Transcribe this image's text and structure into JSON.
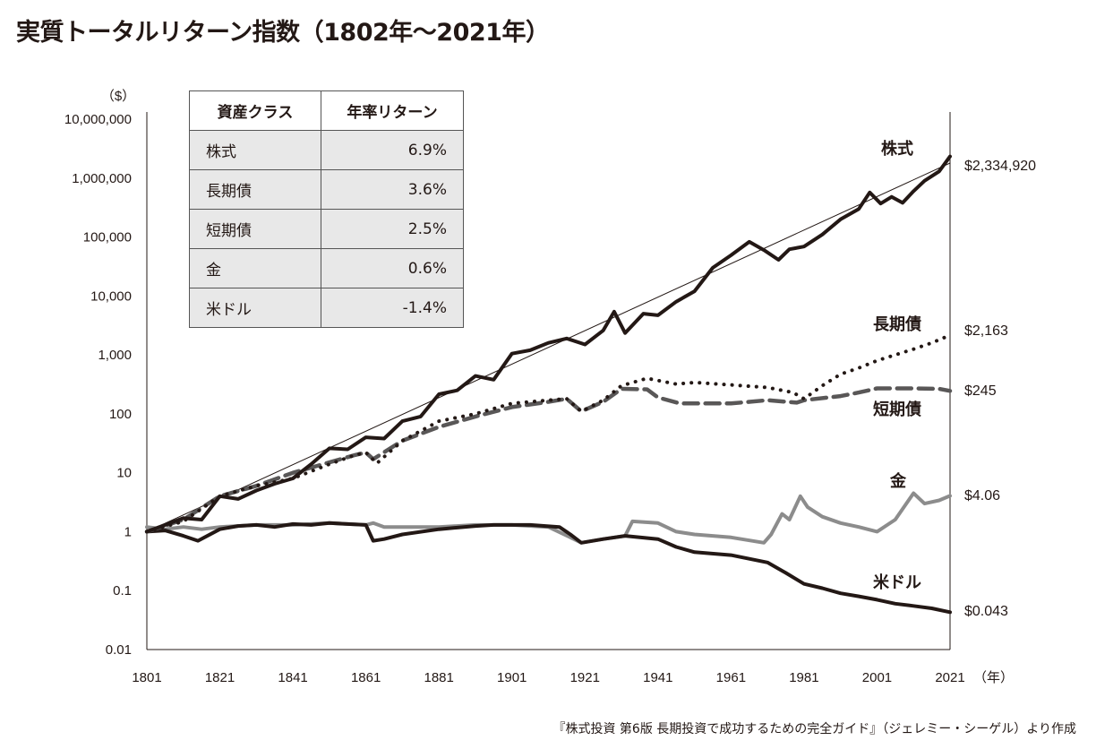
{
  "title": "実質トータルリターン指数（1802年〜2021年）",
  "source": "『株式投資 第6版 長期投資で成功するための完全ガイド』（ジェレミー・シーゲル）より作成",
  "table": {
    "headers": [
      "資産クラス",
      "年率リターン"
    ],
    "rows": [
      {
        "asset": "株式",
        "return": "6.9%"
      },
      {
        "asset": "長期債",
        "return": "3.6%"
      },
      {
        "asset": "短期債",
        "return": "2.5%"
      },
      {
        "asset": "金",
        "return": "0.6%"
      },
      {
        "asset": "米ドル",
        "return": "-1.4%"
      }
    ]
  },
  "chart_data": {
    "type": "line",
    "title": "実質トータルリターン指数（1802年〜2021年）",
    "ylabel": "（$）",
    "xlabel": "（年）",
    "yscale": "log",
    "ylim": [
      0.01,
      10000000
    ],
    "xlim": [
      1801,
      2021
    ],
    "yticks": [
      "0.01",
      "0.1",
      "1",
      "10",
      "100",
      "1,000",
      "10,000",
      "100,000",
      "1,000,000",
      "10,000,000"
    ],
    "xticks": [
      "1801",
      "1821",
      "1841",
      "1861",
      "1881",
      "1901",
      "1921",
      "1941",
      "1961",
      "1981",
      "2001",
      "2021"
    ],
    "grid": false,
    "series": [
      {
        "name": "株式",
        "end_label": "$2,334,920",
        "color": "#231815",
        "style": "solid",
        "x": [
          1801,
          1806,
          1811,
          1816,
          1821,
          1826,
          1831,
          1836,
          1841,
          1846,
          1851,
          1856,
          1861,
          1866,
          1871,
          1876,
          1881,
          1886,
          1891,
          1896,
          1901,
          1906,
          1911,
          1916,
          1921,
          1926,
          1929,
          1932,
          1937,
          1941,
          1946,
          1951,
          1956,
          1961,
          1966,
          1970,
          1974,
          1977,
          1981,
          1986,
          1991,
          1996,
          1999,
          2002,
          2005,
          2008,
          2011,
          2014,
          2018,
          2021
        ],
        "y": [
          1,
          1.3,
          1.7,
          1.6,
          4,
          3.6,
          5,
          6.5,
          8,
          14,
          26,
          25,
          40,
          38,
          75,
          90,
          215,
          250,
          440,
          380,
          1050,
          1200,
          1600,
          1900,
          1500,
          2600,
          5400,
          2350,
          5000,
          4700,
          8000,
          12000,
          30000,
          49000,
          83000,
          60000,
          41000,
          62000,
          69000,
          110000,
          200000,
          300000,
          570000,
          370000,
          480000,
          380000,
          600000,
          900000,
          1300000,
          2334920
        ]
      },
      {
        "name": "長期債",
        "end_label": "$2,163",
        "color": "#231815",
        "style": "dotted",
        "x": [
          1801,
          1811,
          1821,
          1831,
          1841,
          1851,
          1858,
          1861,
          1864,
          1871,
          1881,
          1891,
          1901,
          1911,
          1916,
          1920,
          1926,
          1931,
          1938,
          1946,
          1951,
          1961,
          1971,
          1978,
          1981,
          1986,
          1991,
          1996,
          2001,
          2006,
          2011,
          2016,
          2021
        ],
        "y": [
          1,
          1.5,
          4,
          6,
          8,
          14,
          20,
          22,
          14.5,
          35,
          75,
          100,
          150,
          170,
          180,
          110,
          170,
          300,
          400,
          320,
          340,
          310,
          280,
          230,
          180,
          300,
          470,
          600,
          800,
          1000,
          1250,
          1600,
          2163
        ]
      },
      {
        "name": "短期債",
        "end_label": "$245",
        "color": "#595757",
        "style": "dashed",
        "x": [
          1801,
          1811,
          1821,
          1831,
          1841,
          1851,
          1858,
          1861,
          1863,
          1871,
          1881,
          1891,
          1901,
          1911,
          1916,
          1920,
          1926,
          1931,
          1938,
          1941,
          1947,
          1961,
          1971,
          1979,
          1981,
          1991,
          1996,
          2001,
          2011,
          2018,
          2021
        ],
        "y": [
          1,
          1.6,
          4,
          6,
          10,
          15,
          20,
          22,
          17,
          35,
          60,
          90,
          130,
          160,
          180,
          110,
          160,
          265,
          260,
          190,
          150,
          150,
          170,
          155,
          170,
          200,
          230,
          270,
          270,
          265,
          245
        ]
      },
      {
        "name": "金",
        "end_label": "$4.06",
        "color": "#8c8c8c",
        "style": "solid",
        "x": [
          1801,
          1806,
          1811,
          1816,
          1821,
          1831,
          1841,
          1851,
          1861,
          1863,
          1866,
          1871,
          1881,
          1891,
          1901,
          1911,
          1917,
          1920,
          1926,
          1932,
          1934,
          1941,
          1946,
          1951,
          1961,
          1970,
          1972,
          1975,
          1977,
          1980,
          1982,
          1986,
          1991,
          1996,
          2001,
          2006,
          2011,
          2014,
          2018,
          2021
        ],
        "y": [
          1.2,
          1.1,
          1.2,
          1.1,
          1.2,
          1.3,
          1.3,
          1.4,
          1.3,
          1.4,
          1.2,
          1.2,
          1.2,
          1.3,
          1.3,
          1.2,
          0.8,
          0.65,
          0.75,
          0.85,
          1.5,
          1.4,
          1.0,
          0.9,
          0.8,
          0.65,
          0.9,
          2.0,
          1.6,
          4.0,
          2.6,
          1.8,
          1.4,
          1.2,
          1.0,
          1.6,
          4.5,
          3.0,
          3.4,
          4.06
        ]
      },
      {
        "name": "米ドル",
        "end_label": "$0.043",
        "color": "#231815",
        "style": "solid",
        "x": [
          1801,
          1806,
          1811,
          1815,
          1821,
          1826,
          1831,
          1836,
          1841,
          1846,
          1851,
          1856,
          1861,
          1863,
          1866,
          1871,
          1881,
          1891,
          1896,
          1906,
          1914,
          1917,
          1920,
          1926,
          1932,
          1941,
          1946,
          1951,
          1961,
          1971,
          1976,
          1981,
          1986,
          1991,
          1996,
          2001,
          2006,
          2011,
          2016,
          2021
        ],
        "y": [
          1,
          1.05,
          0.85,
          0.7,
          1.1,
          1.25,
          1.3,
          1.2,
          1.35,
          1.3,
          1.4,
          1.35,
          1.3,
          0.7,
          0.75,
          0.9,
          1.1,
          1.25,
          1.3,
          1.3,
          1.2,
          0.9,
          0.65,
          0.75,
          0.85,
          0.75,
          0.55,
          0.45,
          0.4,
          0.3,
          0.2,
          0.13,
          0.11,
          0.09,
          0.08,
          0.07,
          0.06,
          0.055,
          0.05,
          0.043
        ]
      }
    ],
    "trendline": {
      "x": [
        1801,
        2021
      ],
      "y": [
        1,
        1800000
      ]
    }
  }
}
